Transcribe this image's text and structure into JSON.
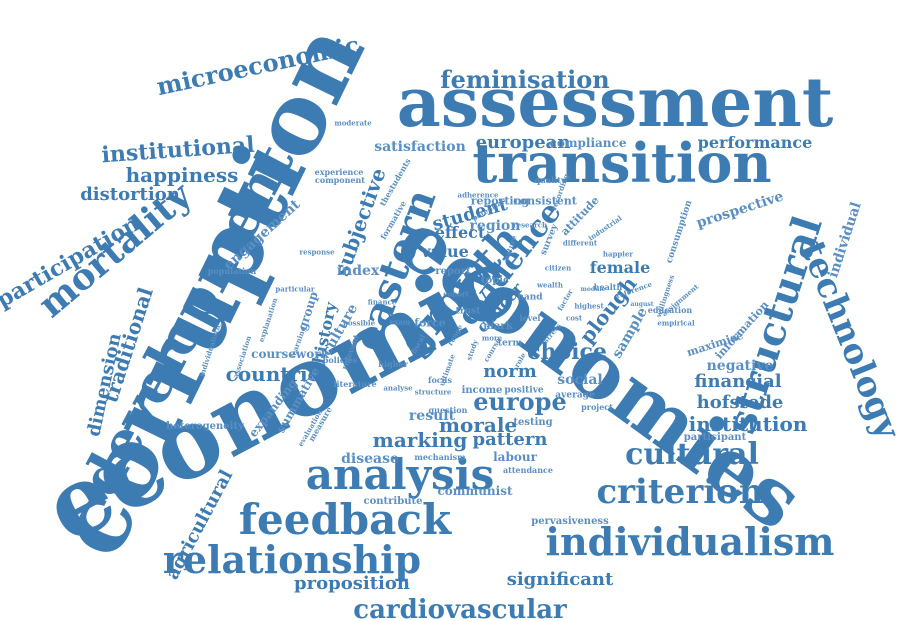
{
  "colors": {
    "primary": "#3d7bb3",
    "secondary": "#5a8fc2",
    "background": "#ffffff"
  },
  "words": [
    {
      "text": "corruption"
    },
    {
      "text": "economic"
    },
    {
      "text": "economies"
    },
    {
      "text": "assessment"
    },
    {
      "text": "transition"
    },
    {
      "text": "development"
    },
    {
      "text": "individualism"
    },
    {
      "text": "feedback"
    },
    {
      "text": "relationship"
    },
    {
      "text": "analysis"
    },
    {
      "text": "criterion"
    },
    {
      "text": "structural"
    },
    {
      "text": "technology"
    },
    {
      "text": "cultural"
    },
    {
      "text": "cardiovascular"
    },
    {
      "text": "growth"
    },
    {
      "text": "eastern"
    },
    {
      "text": "mortality"
    },
    {
      "text": "microeconomic"
    },
    {
      "text": "feminisation"
    },
    {
      "text": "europe"
    },
    {
      "text": "institutional"
    },
    {
      "text": "participation"
    },
    {
      "text": "happiness"
    },
    {
      "text": "distortion"
    },
    {
      "text": "traditional"
    },
    {
      "text": "dimension"
    },
    {
      "text": "agricultural"
    },
    {
      "text": "proposition"
    },
    {
      "text": "significant"
    },
    {
      "text": "individual"
    },
    {
      "text": "european"
    },
    {
      "text": "performance"
    },
    {
      "text": "satisfaction"
    },
    {
      "text": "compliance"
    },
    {
      "text": "choice"
    },
    {
      "text": "countrie"
    },
    {
      "text": "marking"
    },
    {
      "text": "morale"
    },
    {
      "text": "institution"
    },
    {
      "text": "financial"
    },
    {
      "text": "hofstede"
    },
    {
      "text": "pattern"
    },
    {
      "text": "disease"
    },
    {
      "text": "evidence"
    },
    {
      "text": "culture"
    },
    {
      "text": "subjective"
    },
    {
      "text": "plough"
    },
    {
      "text": "student"
    },
    {
      "text": "effect"
    },
    {
      "text": "value"
    },
    {
      "text": "region"
    },
    {
      "text": "female"
    },
    {
      "text": "prospective"
    },
    {
      "text": "engagement"
    },
    {
      "text": "history"
    },
    {
      "text": "norm"
    },
    {
      "text": "social"
    },
    {
      "text": "index"
    },
    {
      "text": "cancer"
    },
    {
      "text": "sample"
    },
    {
      "text": "negative"
    },
    {
      "text": "labour"
    },
    {
      "text": "result"
    },
    {
      "text": "testing"
    },
    {
      "text": "participant"
    },
    {
      "text": "communist"
    },
    {
      "text": "pervasiveness"
    },
    {
      "text": "contribute"
    },
    {
      "text": "heterogeneity"
    },
    {
      "text": "expanding"
    },
    {
      "text": "summative"
    },
    {
      "text": "coursework"
    },
    {
      "text": "group"
    },
    {
      "text": "reporting"
    },
    {
      "text": "consistent"
    },
    {
      "text": "attitude"
    },
    {
      "text": "report"
    },
    {
      "text": "topic"
    },
    {
      "text": "mark"
    },
    {
      "text": "income"
    },
    {
      "text": "positive"
    },
    {
      "text": "average"
    },
    {
      "text": "project"
    },
    {
      "text": "focus"
    },
    {
      "text": "force"
    },
    {
      "text": "term"
    },
    {
      "text": "education"
    },
    {
      "text": "empirical"
    },
    {
      "text": "maximise"
    },
    {
      "text": "information"
    },
    {
      "text": "consumption"
    },
    {
      "text": "population"
    },
    {
      "text": "particular"
    },
    {
      "text": "response"
    },
    {
      "text": "experience"
    },
    {
      "text": "component"
    },
    {
      "text": "moderate"
    },
    {
      "text": "policies"
    },
    {
      "text": "measure"
    },
    {
      "text": "evaluation"
    },
    {
      "text": "mechanism"
    },
    {
      "text": "attendance"
    },
    {
      "text": "literature"
    },
    {
      "text": "relevant"
    },
    {
      "text": "explanation"
    },
    {
      "text": "association"
    },
    {
      "text": "individualistic"
    },
    {
      "text": "question"
    },
    {
      "text": "health"
    },
    {
      "text": "quality"
    },
    {
      "text": "adherence"
    },
    {
      "text": "cohort"
    },
    {
      "text": "hand"
    },
    {
      "text": "possible"
    },
    {
      "text": "higher"
    },
    {
      "text": "thestudents"
    },
    {
      "text": "citizen"
    },
    {
      "text": "different"
    },
    {
      "text": "industrial"
    },
    {
      "text": "survey"
    },
    {
      "text": "formative"
    },
    {
      "text": "highest"
    },
    {
      "text": "reference"
    },
    {
      "text": "willingness"
    },
    {
      "text": "assignment"
    },
    {
      "text": "research"
    },
    {
      "text": "happier"
    },
    {
      "text": "trust"
    },
    {
      "text": "finance"
    },
    {
      "text": "exam"
    },
    {
      "text": "learning"
    },
    {
      "text": "wealth"
    },
    {
      "text": "module"
    },
    {
      "text": "august"
    },
    {
      "text": "nature"
    },
    {
      "text": "recording"
    },
    {
      "text": "potential"
    },
    {
      "text": "structure"
    },
    {
      "text": "analyse"
    },
    {
      "text": "course"
    },
    {
      "text": "ultimate"
    },
    {
      "text": "study"
    },
    {
      "text": "more"
    },
    {
      "text": "level"
    },
    {
      "text": "cost"
    },
    {
      "text": "stress"
    },
    {
      "text": "fiscal"
    },
    {
      "text": "range"
    },
    {
      "text": "role"
    },
    {
      "text": "factor"
    }
  ]
}
